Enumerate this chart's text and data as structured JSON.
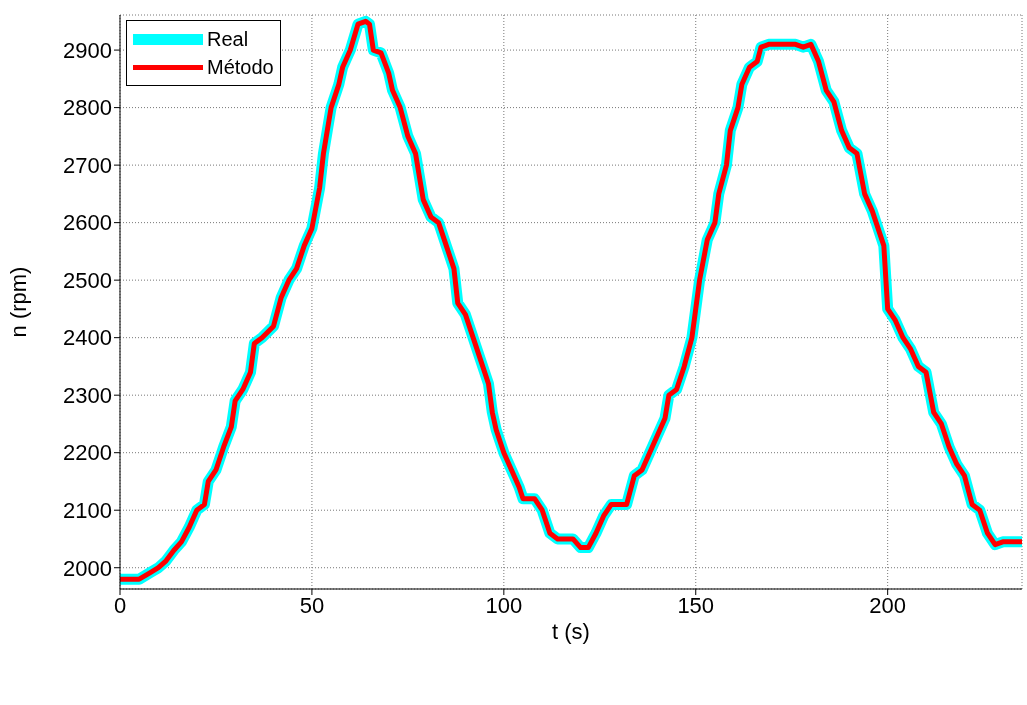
{
  "chart_data": {
    "type": "line",
    "xlabel": "t (s)",
    "ylabel": "n (rpm)",
    "x": [
      0,
      5,
      8,
      10,
      12,
      14,
      16,
      18,
      20,
      22,
      23,
      25,
      27,
      29,
      30,
      32,
      34,
      35,
      37,
      40,
      42,
      44,
      46,
      48,
      50,
      52,
      53,
      55,
      57,
      58,
      60,
      62,
      64,
      65,
      66,
      68,
      70,
      71,
      73,
      75,
      77,
      79,
      81,
      83,
      85,
      87,
      88,
      90,
      92,
      94,
      96,
      97,
      98,
      100,
      102,
      104,
      105,
      108,
      110,
      112,
      114,
      118,
      120,
      122,
      124,
      126,
      128,
      132,
      134,
      136,
      138,
      140,
      142,
      143,
      145,
      147,
      149,
      150,
      151,
      153,
      155,
      156,
      158,
      159,
      161,
      162,
      164,
      166,
      167,
      169,
      176,
      178,
      180,
      182,
      184,
      186,
      188,
      190,
      192,
      194,
      196,
      197,
      199,
      200,
      202,
      204,
      206,
      208,
      210,
      212,
      214,
      216,
      218,
      220,
      222,
      224,
      226,
      228,
      230,
      235
    ],
    "series": [
      {
        "name": "Real",
        "color": "#00ffff",
        "values": [
          1980,
          1980,
          1992,
          2000,
          2012,
          2030,
          2045,
          2070,
          2100,
          2110,
          2150,
          2170,
          2210,
          2245,
          2290,
          2310,
          2340,
          2390,
          2400,
          2420,
          2470,
          2500,
          2520,
          2560,
          2590,
          2660,
          2720,
          2800,
          2840,
          2870,
          2900,
          2945,
          2950,
          2945,
          2900,
          2895,
          2860,
          2830,
          2800,
          2750,
          2720,
          2640,
          2610,
          2600,
          2560,
          2520,
          2460,
          2440,
          2400,
          2360,
          2320,
          2270,
          2240,
          2200,
          2170,
          2140,
          2120,
          2120,
          2100,
          2060,
          2050,
          2050,
          2035,
          2035,
          2060,
          2090,
          2110,
          2110,
          2160,
          2170,
          2200,
          2230,
          2260,
          2300,
          2310,
          2350,
          2400,
          2450,
          2500,
          2570,
          2600,
          2650,
          2700,
          2760,
          2800,
          2840,
          2870,
          2880,
          2905,
          2910,
          2910,
          2905,
          2910,
          2880,
          2830,
          2810,
          2760,
          2730,
          2720,
          2650,
          2620,
          2600,
          2560,
          2450,
          2430,
          2400,
          2380,
          2350,
          2340,
          2270,
          2250,
          2210,
          2180,
          2160,
          2110,
          2100,
          2060,
          2040,
          2045,
          2045
        ]
      },
      {
        "name": "Método",
        "color": "#ff0000",
        "values": [
          1980,
          1980,
          1992,
          2000,
          2012,
          2030,
          2045,
          2070,
          2100,
          2110,
          2150,
          2170,
          2210,
          2245,
          2290,
          2310,
          2340,
          2390,
          2400,
          2420,
          2470,
          2500,
          2520,
          2560,
          2590,
          2660,
          2720,
          2800,
          2840,
          2870,
          2900,
          2945,
          2950,
          2945,
          2900,
          2895,
          2860,
          2830,
          2800,
          2750,
          2720,
          2640,
          2610,
          2600,
          2560,
          2520,
          2460,
          2440,
          2400,
          2360,
          2320,
          2270,
          2240,
          2200,
          2170,
          2140,
          2120,
          2120,
          2100,
          2060,
          2050,
          2050,
          2035,
          2035,
          2060,
          2090,
          2110,
          2110,
          2160,
          2170,
          2200,
          2230,
          2260,
          2300,
          2310,
          2350,
          2400,
          2450,
          2500,
          2570,
          2600,
          2650,
          2700,
          2760,
          2800,
          2840,
          2870,
          2880,
          2905,
          2910,
          2910,
          2905,
          2910,
          2880,
          2830,
          2810,
          2760,
          2730,
          2720,
          2650,
          2620,
          2600,
          2560,
          2450,
          2430,
          2400,
          2380,
          2350,
          2340,
          2270,
          2250,
          2210,
          2180,
          2160,
          2110,
          2100,
          2060,
          2040,
          2045,
          2045
        ]
      }
    ],
    "xlim": [
      0,
      235
    ],
    "xticks": [
      0,
      50,
      100,
      150,
      200
    ],
    "ylim": [
      1963,
      2961
    ],
    "yticks": [
      2000,
      2100,
      2200,
      2300,
      2400,
      2500,
      2600,
      2700,
      2800,
      2900
    ],
    "grid": true,
    "legend": "top left",
    "line_style": "solid",
    "marker": "none"
  }
}
